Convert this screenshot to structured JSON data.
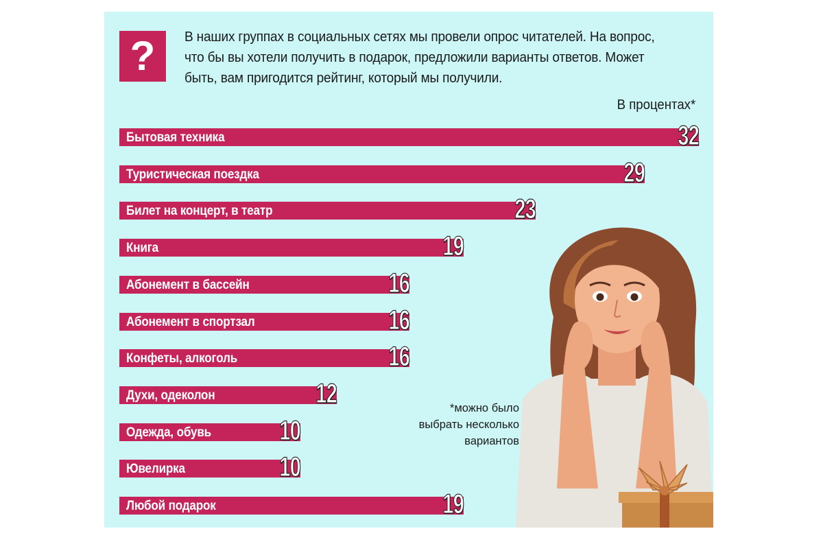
{
  "intro": {
    "q_mark": "?",
    "text": "В наших группах в социальных сетях мы провели опрос читателей. На вопрос, что бы вы хотели получить в подарок, предложили варианты ответов. Может быть, вам пригодится рейтинг, который мы получили.",
    "unit": "В процентах*",
    "footnote_lines": [
      "*можно было",
      "выбрать несколько",
      "вариантов"
    ]
  },
  "colors": {
    "bar": "#c4245a",
    "background": "#cdf6f7",
    "text": "#1a1a1a"
  },
  "illustration": "smiling-woman-with-gift-box",
  "chart_data": {
    "type": "bar",
    "orientation": "horizontal",
    "title": "",
    "xlabel": "",
    "ylabel": "",
    "unit": "В процентах*",
    "xlim": [
      0,
      32
    ],
    "grid": false,
    "legend": "none",
    "categories": [
      "Бытовая техника",
      "Туристическая поездка",
      "Билет на концерт, в театр",
      "Книга",
      "Абонемент в бассейн",
      "Абонемент в спортзал",
      "Конфеты, алкоголь",
      "Духи, одеколон",
      "Одежда, обувь",
      "Ювелирка",
      "Любой подарок"
    ],
    "values": [
      32,
      29,
      23,
      19,
      16,
      16,
      16,
      12,
      10,
      10,
      19
    ],
    "value_labels": [
      "32",
      "29",
      "23",
      "19",
      "16",
      "16",
      "16",
      "12",
      "10",
      "10",
      "19"
    ]
  }
}
